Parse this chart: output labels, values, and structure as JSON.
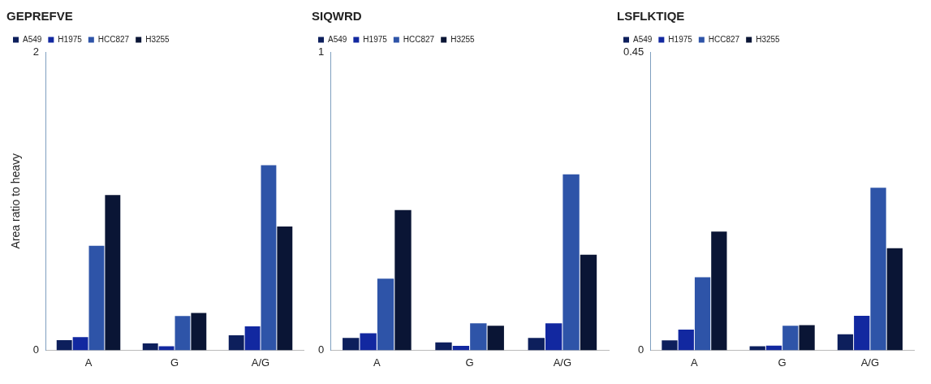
{
  "chart_data": [
    {
      "type": "bar",
      "title": "GEPREFVE",
      "ylabel": "Area ratio to heavy",
      "categories": [
        "A",
        "G",
        "A/G"
      ],
      "ylim": [
        0,
        2
      ],
      "yticks": [
        0,
        2
      ],
      "grid": false,
      "legend": "top left",
      "series": [
        {
          "name": "A549",
          "color": "#0d1f5c",
          "values": [
            0.067,
            0.046,
            0.1
          ]
        },
        {
          "name": "H1975",
          "color": "#1228a0",
          "values": [
            0.088,
            0.026,
            0.16
          ]
        },
        {
          "name": "HCC827",
          "color": "#2e54a8",
          "values": [
            0.7,
            0.23,
            1.24
          ]
        },
        {
          "name": "H3255",
          "color": "#0a1535",
          "values": [
            1.04,
            0.25,
            0.83
          ]
        }
      ]
    },
    {
      "type": "bar",
      "title": "SIQWRD",
      "categories": [
        "A",
        "G",
        "A/G"
      ],
      "ylim": [
        0,
        1
      ],
      "yticks": [
        0,
        1
      ],
      "grid": false,
      "legend": "top left",
      "series": [
        {
          "name": "A549",
          "color": "#0d1f5c",
          "values": [
            0.041,
            0.026,
            0.041
          ]
        },
        {
          "name": "H1975",
          "color": "#1228a0",
          "values": [
            0.057,
            0.015,
            0.09
          ]
        },
        {
          "name": "HCC827",
          "color": "#2e54a8",
          "values": [
            0.24,
            0.09,
            0.59
          ]
        },
        {
          "name": "H3255",
          "color": "#0a1535",
          "values": [
            0.47,
            0.082,
            0.32
          ]
        }
      ]
    },
    {
      "type": "bar",
      "title": "LSFLKTIQE",
      "categories": [
        "A",
        "G",
        "A/G"
      ],
      "ylim": [
        0,
        0.45
      ],
      "yticks": [
        0,
        0.45
      ],
      "grid": false,
      "legend": "top left",
      "series": [
        {
          "name": "A549",
          "color": "#0d1f5c",
          "values": [
            0.015,
            0.006,
            0.024
          ]
        },
        {
          "name": "H1975",
          "color": "#1228a0",
          "values": [
            0.031,
            0.007,
            0.052
          ]
        },
        {
          "name": "HCC827",
          "color": "#2e54a8",
          "values": [
            0.11,
            0.037,
            0.245
          ]
        },
        {
          "name": "H3255",
          "color": "#0a1535",
          "values": [
            0.179,
            0.038,
            0.154
          ]
        }
      ]
    }
  ]
}
